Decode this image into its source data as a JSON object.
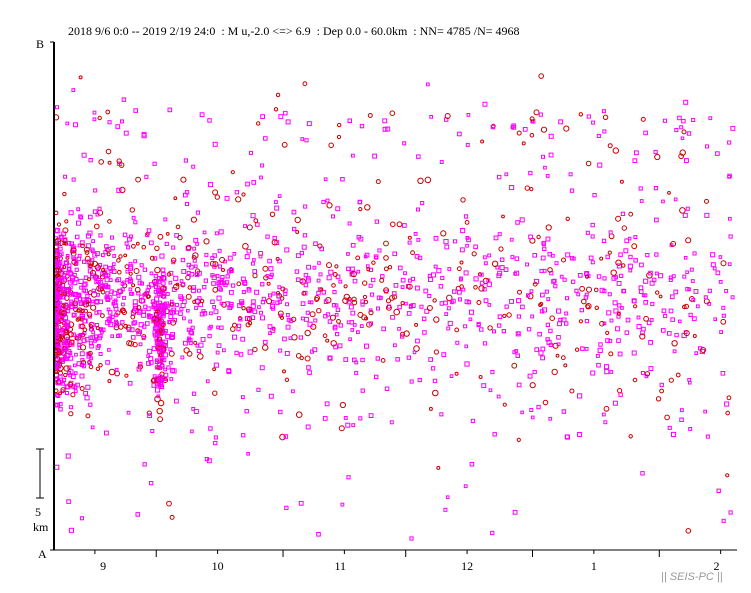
{
  "header": {
    "period": "2018 9/6 0:0 -- 2019 2/19 24:0",
    "magnitude": ": M u,-2.0 <=> 6.9",
    "depth": ": Dep 0.0 - 60.0km",
    "counts": ": NN= 4785 /N= 4968"
  },
  "chart_data": {
    "type": "scatter",
    "x_unit": "date",
    "x_range": [
      "2018-09-06",
      "2019-02-19"
    ],
    "ylabel_top": "B",
    "ylabel_bottom": "A",
    "scale_bar": {
      "value": "5",
      "unit": "km"
    },
    "tick_labels": [
      "9",
      "10",
      "11",
      "12",
      "1",
      "2"
    ],
    "colors": {
      "small": "#ff00ff",
      "large": "#cc0000",
      "axis": "#000000"
    }
  },
  "brand": "|| SEIS-PC ||"
}
